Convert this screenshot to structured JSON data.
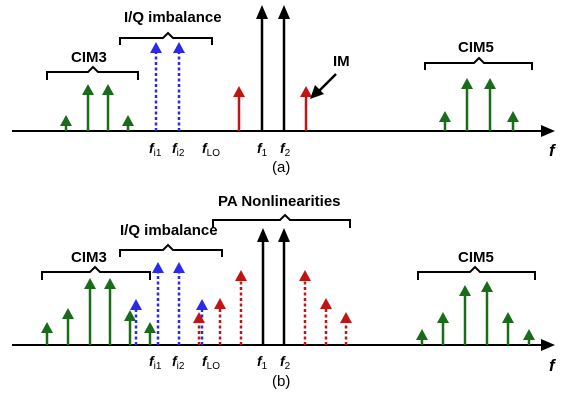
{
  "colors": {
    "black": "#000000",
    "green": "#1a6b1a",
    "blue": "#2a2ae8",
    "red": "#c01515"
  },
  "panels": [
    {
      "caption": "(a)",
      "labels": {
        "cim3": "CIM3",
        "iq": "I/Q imbalance",
        "cim5": "CIM5",
        "im": "IM"
      },
      "freq_labels": {
        "fi1_main": "f",
        "fi1_sub": "i1",
        "fi2_main": "f",
        "fi2_sub": "i2",
        "flo_main": "f",
        "flo_sub": "LO",
        "f1_main": "f",
        "f1_sub": "1",
        "f2_main": "f",
        "f2_sub": "2"
      },
      "axis_label": "f"
    },
    {
      "caption": "(b)",
      "labels": {
        "cim3": "CIM3",
        "iq": "I/Q imbalance",
        "pa": "PA Nonlinearities",
        "cim5": "CIM5"
      },
      "freq_labels": {
        "fi1_main": "f",
        "fi1_sub": "i1",
        "fi2_main": "f",
        "fi2_sub": "i2",
        "flo_main": "f",
        "flo_sub": "LO",
        "f1_main": "f",
        "f1_sub": "1",
        "f2_main": "f",
        "f2_sub": "2"
      },
      "axis_label": "f"
    }
  ]
}
